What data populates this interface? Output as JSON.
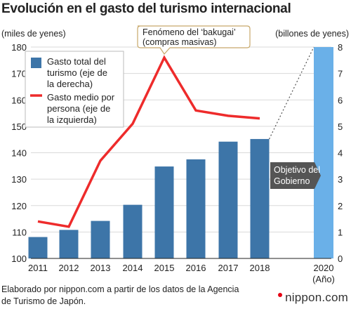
{
  "title": "Evolución en el gasto del turismo internacional",
  "source_text": "Elaborado por nippon.com a partir de los datos de la Agencia de Turismo de Japón.",
  "brand": "nippon.com",
  "colors": {
    "bar": "#3d75a8",
    "target_bar": "#6ab0e8",
    "line": "#ee2b2b",
    "callout_bg": "#555555",
    "grid": "#d9d9d9",
    "brand_dot": "#e60012"
  },
  "chart_data": {
    "type": "bar",
    "title": "Evolución en el gasto del turismo internacional",
    "left_axis_label": "(miles de yenes)",
    "right_axis_label": "(billones de yenes)",
    "x_unit_label": "(Año)",
    "left_ylim": [
      100,
      180
    ],
    "left_ticks": [
      100,
      110,
      120,
      130,
      140,
      150,
      160,
      170,
      180
    ],
    "right_ylim": [
      0,
      8
    ],
    "right_ticks": [
      0,
      1,
      2,
      3,
      4,
      5,
      6,
      7,
      8
    ],
    "categories": [
      "2011",
      "2012",
      "2013",
      "2014",
      "2015",
      "2016",
      "2017",
      "2018",
      "2020"
    ],
    "grid": true,
    "legend_position": "top-left",
    "series": [
      {
        "name": "Gasto total del turismo (eje de la derecha)",
        "type": "bar",
        "axis": "right",
        "x": [
          "2011",
          "2012",
          "2013",
          "2014",
          "2015",
          "2016",
          "2017",
          "2018"
        ],
        "values": [
          0.81,
          1.08,
          1.42,
          2.03,
          3.48,
          3.75,
          4.42,
          4.52
        ]
      },
      {
        "name": "Gasto medio por persona (eje de la izquierda)",
        "type": "line",
        "axis": "left",
        "x": [
          "2011",
          "2012",
          "2013",
          "2014",
          "2015",
          "2016",
          "2017",
          "2018"
        ],
        "values": [
          114,
          112,
          137,
          151,
          176,
          156,
          154,
          153
        ]
      }
    ],
    "target": {
      "x": "2020",
      "value": 8,
      "label": "Objetivo del Gobierno"
    },
    "annotation": "Fenómeno del ‘bakugai’ (compras masivas)"
  }
}
